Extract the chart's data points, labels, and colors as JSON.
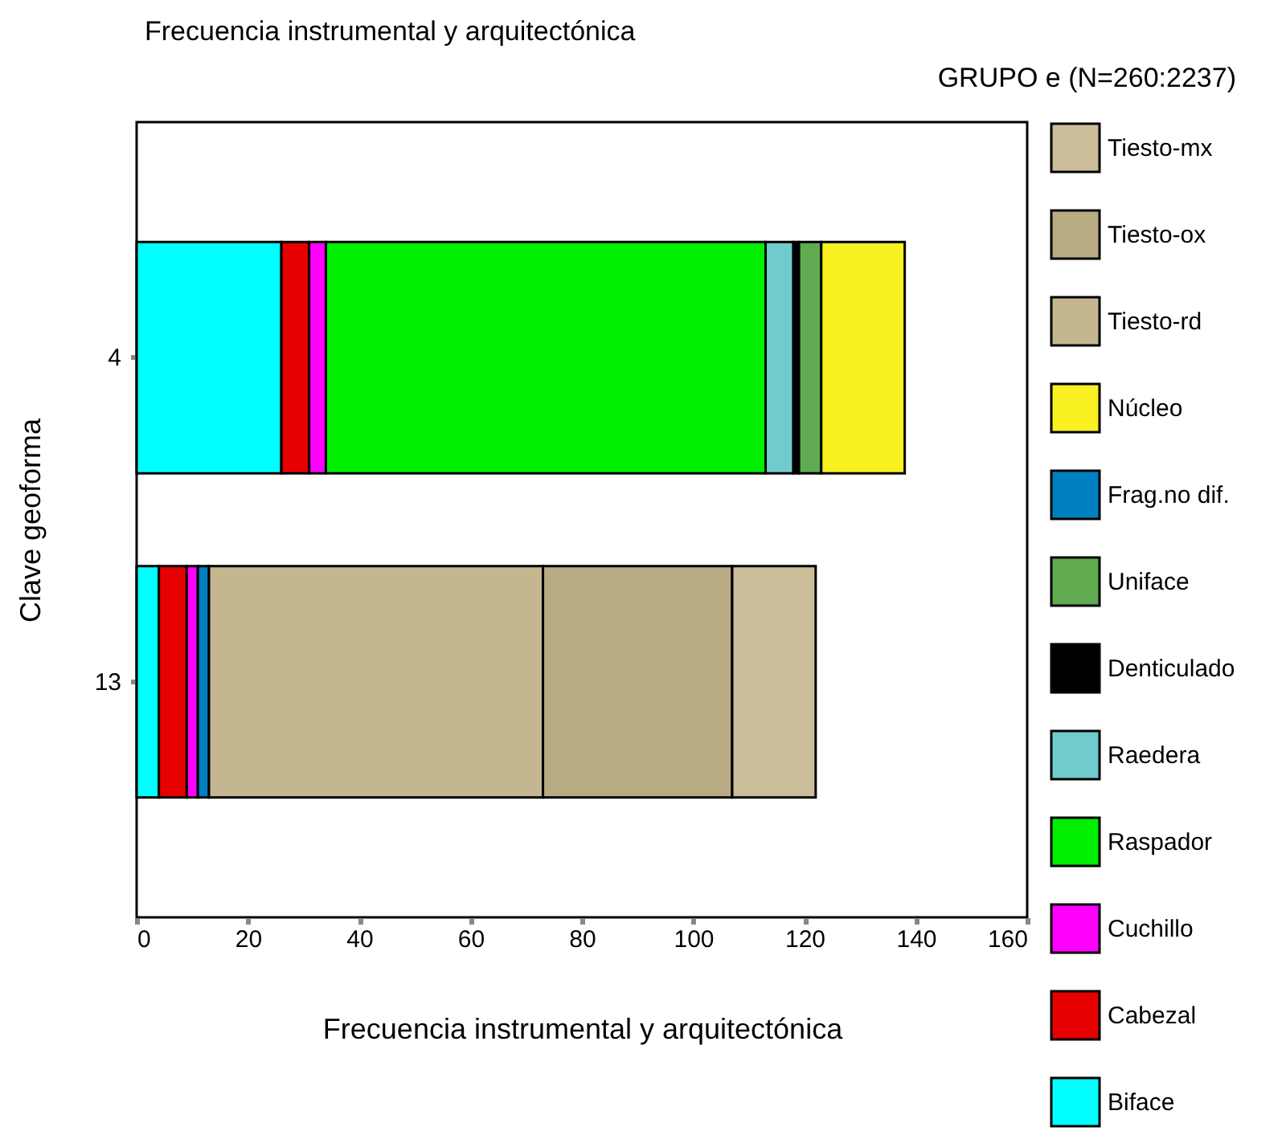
{
  "chart_data": {
    "type": "bar",
    "orientation": "horizontal",
    "stacked": true,
    "title": "Frecuencia instrumental y arquitectónica",
    "subtitle": "GRUPO e    (N=260:2237)",
    "xlabel": "Frecuencia instrumental y arquitectónica",
    "ylabel": "Clave geoforma",
    "categories": [
      "4",
      "13"
    ],
    "xlim": [
      0,
      160
    ],
    "xticks": [
      0,
      20,
      40,
      60,
      80,
      100,
      120,
      140,
      160
    ],
    "grid": false,
    "legend": "right",
    "series": [
      {
        "name": "Biface",
        "color": "#00ffff",
        "values": [
          26,
          4
        ]
      },
      {
        "name": "Cabezal",
        "color": "#e60000",
        "values": [
          5,
          5
        ]
      },
      {
        "name": "Cuchillo",
        "color": "#ff00ff",
        "values": [
          3,
          2
        ]
      },
      {
        "name": "Raspador",
        "color": "#00ee00",
        "values": [
          79,
          null
        ]
      },
      {
        "name": "Raedera",
        "color": "#70cccc",
        "values": [
          5,
          null
        ]
      },
      {
        "name": "Denticulado",
        "color": "#000000",
        "values": [
          1,
          null
        ]
      },
      {
        "name": "Uniface",
        "color": "#60aa50",
        "values": [
          4,
          null
        ]
      },
      {
        "name": "Frag.no dif.",
        "color": "#0080c0",
        "values": [
          null,
          2
        ]
      },
      {
        "name": "Núcleo",
        "color": "#f8f020",
        "values": [
          15,
          null
        ]
      },
      {
        "name": "Tiesto-rd",
        "color": "#c4b790",
        "values": [
          null,
          60
        ]
      },
      {
        "name": "Tiesto-ox",
        "color": "#b8aa82",
        "values": [
          null,
          34
        ]
      },
      {
        "name": "Tiesto-mx",
        "color": "#cabd98",
        "values": [
          null,
          15
        ]
      }
    ]
  }
}
